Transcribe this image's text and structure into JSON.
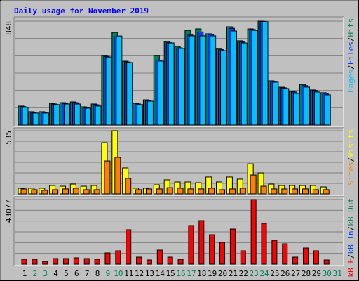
{
  "title": "Daily usage for November 2019",
  "legend_separator": "/",
  "categories": [
    "1",
    "2",
    "3",
    "4",
    "5",
    "6",
    "7",
    "8",
    "9",
    "10",
    "11",
    "12",
    "13",
    "14",
    "15",
    "16",
    "17",
    "18",
    "19",
    "20",
    "21",
    "22",
    "23",
    "24",
    "25",
    "26",
    "27",
    "28",
    "29",
    "30",
    "31"
  ],
  "category_colors": [
    "#000000",
    "#00805c",
    "#00805c",
    "#000000",
    "#000000",
    "#000000",
    "#000000",
    "#000000",
    "#00805c",
    "#00805c",
    "#000000",
    "#000000",
    "#000000",
    "#000000",
    "#000000",
    "#00805c",
    "#00805c",
    "#000000",
    "#000000",
    "#000000",
    "#000000",
    "#000000",
    "#00805c",
    "#00805c",
    "#000000",
    "#000000",
    "#000000",
    "#000000",
    "#000000",
    "#00805c",
    "#00805c"
  ],
  "chart_data": [
    {
      "type": "bar",
      "ylim": [
        0,
        848
      ],
      "yticks": [
        848
      ],
      "series": [
        {
          "name": "Hits",
          "color": "#00805c",
          "values": [
            155,
            109,
            109,
            178,
            183,
            189,
            149,
            172,
            567,
            756,
            521,
            178,
            206,
            567,
            682,
            642,
            773,
            785,
            745,
            625,
            802,
            688,
            785,
            848,
            361,
            309,
            275,
            332,
            287,
            264,
            null
          ]
        },
        {
          "name": "Files",
          "color": "#0040ff",
          "values": [
            150,
            104,
            104,
            172,
            177,
            183,
            143,
            166,
            560,
            720,
            515,
            172,
            200,
            530,
            672,
            630,
            735,
            760,
            740,
            615,
            790,
            678,
            780,
            846,
            356,
            304,
            270,
            322,
            282,
            259,
            null
          ]
        },
        {
          "name": "Pages",
          "color": "#00c0ff",
          "values": [
            144,
            98,
            98,
            167,
            172,
            172,
            138,
            155,
            555,
            727,
            510,
            167,
            195,
            522,
            670,
            625,
            728,
            728,
            728,
            607,
            768,
            670,
            773,
            843,
            350,
            298,
            258,
            310,
            270,
            247,
            null
          ]
        }
      ]
    },
    {
      "type": "bar",
      "ylim": [
        0,
        535
      ],
      "yticks": [
        535
      ],
      "series": [
        {
          "name": "Visits",
          "color": "#ffff00",
          "values": [
            48,
            48,
            48,
            71,
            65,
            83,
            65,
            71,
            434,
            535,
            220,
            48,
            48,
            77,
            119,
            101,
            101,
            95,
            143,
            101,
            143,
            125,
            255,
            178,
            83,
            71,
            71,
            71,
            71,
            59,
            null
          ]
        },
        {
          "name": "Sites",
          "color": "#ff8000",
          "values": [
            42,
            36,
            30,
            36,
            42,
            48,
            36,
            36,
            279,
            309,
            131,
            36,
            42,
            42,
            53,
            48,
            42,
            42,
            48,
            36,
            42,
            48,
            160,
            65,
            42,
            42,
            42,
            42,
            36,
            36,
            null
          ]
        }
      ]
    },
    {
      "type": "bar",
      "ylim": [
        0,
        43077
      ],
      "yticks": [
        43077
      ],
      "series": [
        {
          "name": "kB Out",
          "color": "#00805c"
        },
        {
          "name": "kB In",
          "color": "#0040ff"
        },
        {
          "name": "kB F",
          "color": "#ff0000",
          "values": [
            3276,
            3276,
            1872,
            3744,
            3744,
            4212,
            3744,
            3276,
            7488,
            8892,
            22932,
            4680,
            2808,
            9360,
            4680,
            3276,
            25740,
            29016,
            19656,
            14508,
            23400,
            8892,
            43077,
            27144,
            15912,
            13572,
            4680,
            10764,
            8892,
            2808,
            null
          ]
        }
      ]
    }
  ]
}
